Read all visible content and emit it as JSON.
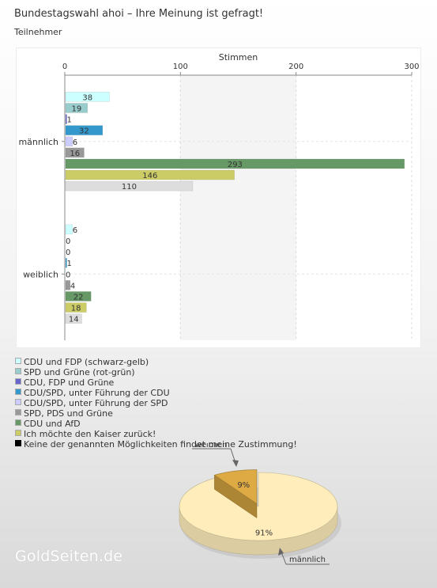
{
  "title": "Bundestagswahl ahoi – Ihre Meinung ist gefragt!",
  "subtitle": "Teilnehmer",
  "watermark": "GoldSeiten.de",
  "chart_data": [
    {
      "type": "bar",
      "orientation": "horizontal",
      "xlabel": "Stimmen",
      "xlim": [
        0,
        300
      ],
      "xticks": [
        0,
        100,
        200,
        300
      ],
      "grid": true,
      "categories": [
        "männlich",
        "weiblich"
      ],
      "series": [
        {
          "name": "CDU und FDP (schwarz-gelb)",
          "color": "#ccffff",
          "values": [
            38,
            6
          ]
        },
        {
          "name": "SPD und Grüne (rot-grün)",
          "color": "#99cccc",
          "values": [
            19,
            0
          ]
        },
        {
          "name": "CDU, FDP und Grüne",
          "color": "#6666cc",
          "values": [
            1,
            0
          ]
        },
        {
          "name": "CDU/SPD, unter Führung der CDU",
          "color": "#3399cc",
          "values": [
            32,
            1
          ]
        },
        {
          "name": "CDU/SPD, unter Führung der SPD",
          "color": "#ccccff",
          "values": [
            6,
            0
          ]
        },
        {
          "name": "SPD, PDS und Grüne",
          "color": "#999999",
          "values": [
            16,
            4
          ]
        },
        {
          "name": "CDU und AfD",
          "color": "#669966",
          "values": [
            293,
            22
          ]
        },
        {
          "name": "Ich möchte den Kaiser zurück!",
          "color": "#cccc66",
          "values": [
            146,
            18
          ]
        },
        {
          "name": "Keine der genannten Möglichkeiten findet meine Zustimmung!",
          "color": "#000000",
          "bar_color": "#dddddd",
          "values": [
            110,
            14
          ]
        }
      ],
      "legend_position": "bottom-left"
    },
    {
      "type": "pie",
      "slices": [
        {
          "label": "männlich",
          "value": 91,
          "display": "91%",
          "color": "#ffeebb"
        },
        {
          "label": "weiblich",
          "value": 9,
          "display": "9%",
          "color": "#ddaa44"
        }
      ]
    }
  ]
}
